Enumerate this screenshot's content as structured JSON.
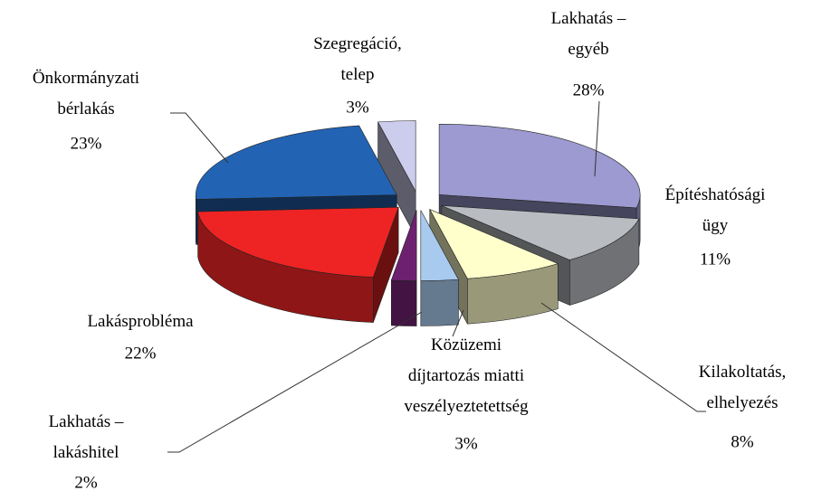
{
  "chart_data": {
    "type": "pie3d",
    "categories": [
      "Lakhatás –\negyéb",
      "Építéshatósági\nügy",
      "Kilakoltatás,\nelhelyezés",
      "Közüzemi\ndíjtartozás miatti\nveszélyeztetettség",
      "Lakhatás –\nlakáshitel",
      "Lakásprobléma",
      "Önkormányzati\nbérlakás",
      "Szegregáció,\ntelep"
    ],
    "values": [
      28,
      11,
      8,
      3,
      2,
      22,
      23,
      3
    ],
    "value_labels": [
      "28%",
      "11%",
      "8%",
      "3%",
      "2%",
      "22%",
      "23%",
      "3%"
    ],
    "colors": [
      "#9c9ad0",
      "#b9bdc2",
      "#ffffcc",
      "#a9caef",
      "#6e2070",
      "#ee2424",
      "#2363b3",
      "#ccccec"
    ]
  }
}
